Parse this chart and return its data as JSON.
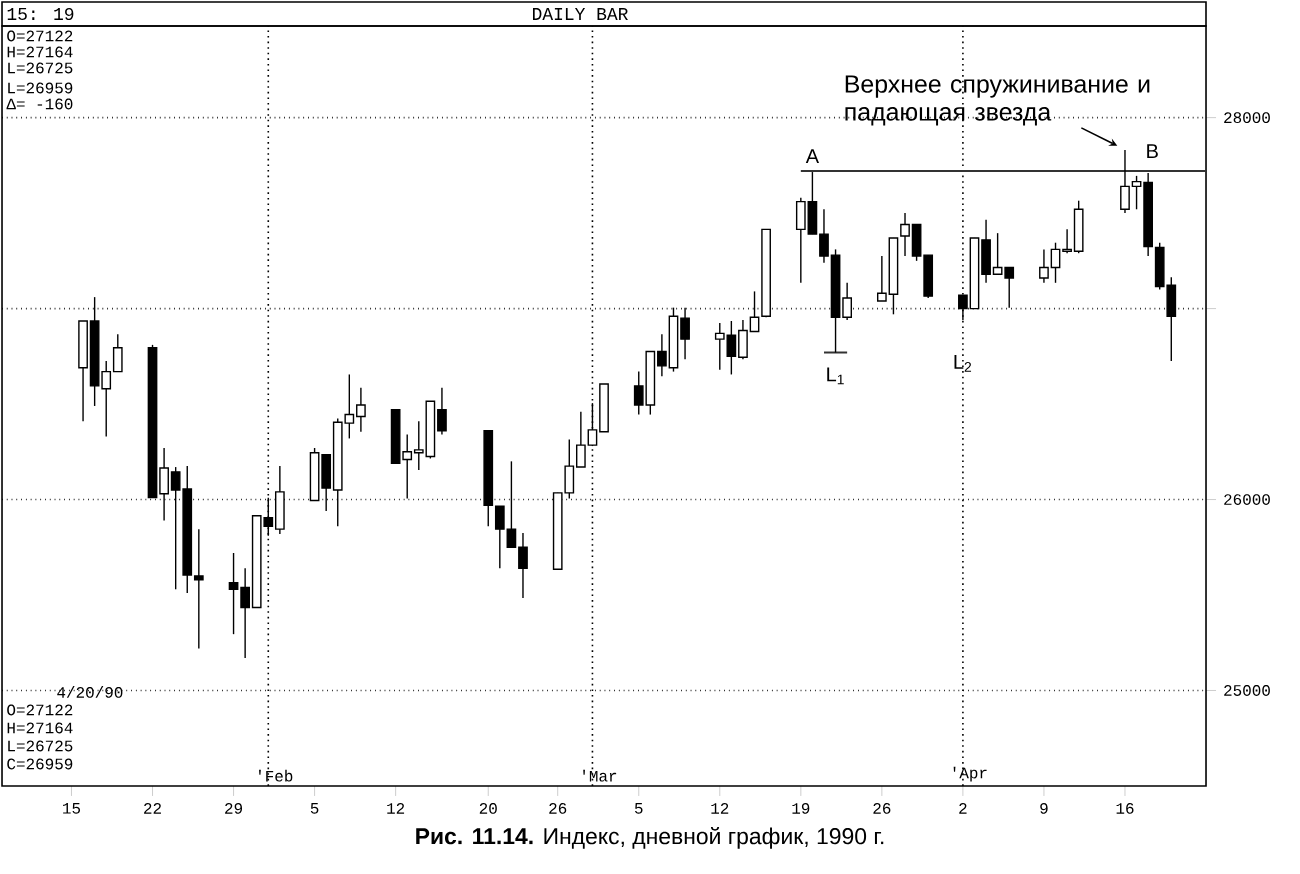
{
  "chart_data": {
    "type": "candlestick",
    "title": "**Рис. 11.14.** Индекс, дневной график, 1990 г.",
    "x": [
      "1990-01-16",
      "1990-01-17",
      "1990-01-18",
      "1990-01-19",
      "1990-01-22",
      "1990-01-23",
      "1990-01-24",
      "1990-01-25",
      "1990-01-26",
      "1990-01-29",
      "1990-01-30",
      "1990-01-31",
      "1990-02-01",
      "1990-02-02",
      "1990-02-05",
      "1990-02-06",
      "1990-02-07",
      "1990-02-08",
      "1990-02-09",
      "1990-02-12",
      "1990-02-13",
      "1990-02-14",
      "1990-02-15",
      "1990-02-16",
      "1990-02-20",
      "1990-02-21",
      "1990-02-22",
      "1990-02-23",
      "1990-02-26",
      "1990-02-27",
      "1990-02-28",
      "1990-03-01",
      "1990-03-02",
      "1990-03-05",
      "1990-03-06",
      "1990-03-07",
      "1990-03-08",
      "1990-03-09",
      "1990-03-12",
      "1990-03-13",
      "1990-03-14",
      "1990-03-15",
      "1990-03-16",
      "1990-03-19",
      "1990-03-20",
      "1990-03-21",
      "1990-03-22",
      "1990-03-23",
      "1990-03-26",
      "1990-03-27",
      "1990-03-28",
      "1990-03-29",
      "1990-03-30",
      "1990-04-02",
      "1990-04-03",
      "1990-04-04",
      "1990-04-05",
      "1990-04-06",
      "1990-04-09",
      "1990-04-10",
      "1990-04-11",
      "1990-04-12",
      "1990-04-16",
      "1990-04-17",
      "1990-04-18",
      "1990-04-19",
      "1990-04-20"
    ],
    "ohlc": [
      [
        26690,
        26935,
        26410,
        26935
      ],
      [
        26935,
        27060,
        26490,
        26595
      ],
      [
        26580,
        26725,
        26330,
        26670
      ],
      [
        26670,
        26865,
        26670,
        26795
      ],
      [
        26795,
        26810,
        26010,
        26010
      ],
      [
        26030,
        26270,
        25890,
        26165
      ],
      [
        26145,
        26170,
        25530,
        26050
      ],
      [
        26055,
        26175,
        25510,
        25605
      ],
      [
        25600,
        25845,
        25220,
        25580
      ],
      [
        25565,
        25720,
        25295,
        25530
      ],
      [
        25540,
        25640,
        25170,
        25435
      ],
      [
        25435,
        25915,
        25435,
        25915
      ],
      [
        25905,
        26010,
        25810,
        25860
      ],
      [
        25845,
        26175,
        25820,
        26040
      ],
      [
        25995,
        26270,
        25995,
        26245
      ],
      [
        26235,
        26235,
        25940,
        26060
      ],
      [
        26050,
        26425,
        25860,
        26405
      ],
      [
        26400,
        26655,
        26320,
        26445
      ],
      [
        26435,
        26585,
        26355,
        26495
      ],
      [
        26470,
        26470,
        26190,
        26190
      ],
      [
        26210,
        26340,
        26005,
        26250
      ],
      [
        26245,
        26410,
        26155,
        26260
      ],
      [
        26225,
        26515,
        26215,
        26515
      ],
      [
        26470,
        26585,
        26340,
        26360
      ],
      [
        26360,
        26360,
        25860,
        25970
      ],
      [
        25965,
        25965,
        25640,
        25845
      ],
      [
        25845,
        26200,
        25750,
        25750
      ],
      [
        25750,
        25825,
        25485,
        25640
      ],
      [
        25635,
        26035,
        25635,
        26035
      ],
      [
        26035,
        26315,
        26005,
        26175
      ],
      [
        26170,
        26460,
        26170,
        26285
      ],
      [
        26285,
        26505,
        26280,
        26365
      ],
      [
        26355,
        26605,
        26355,
        26605
      ],
      [
        26595,
        26670,
        26445,
        26495
      ],
      [
        26495,
        26775,
        26445,
        26775
      ],
      [
        26775,
        26865,
        26645,
        26700
      ],
      [
        26690,
        27005,
        26670,
        26960
      ],
      [
        26950,
        27005,
        26735,
        26840
      ],
      [
        26840,
        26925,
        26680,
        26870
      ],
      [
        26860,
        26935,
        26655,
        26750
      ],
      [
        26745,
        26940,
        26735,
        26885
      ],
      [
        26880,
        27090,
        26880,
        26955
      ],
      [
        26960,
        27415,
        26955,
        27415
      ],
      [
        27415,
        27580,
        27135,
        27560
      ],
      [
        27560,
        27715,
        27390,
        27390
      ],
      [
        27390,
        27520,
        27240,
        27275
      ],
      [
        27280,
        27310,
        26770,
        26955
      ],
      [
        26955,
        27135,
        26940,
        27055
      ],
      [
        27040,
        27275,
        27040,
        27080
      ],
      [
        27075,
        27370,
        26970,
        27370
      ],
      [
        27380,
        27500,
        27275,
        27440
      ],
      [
        27440,
        27440,
        27250,
        27275
      ],
      [
        27280,
        27280,
        27055,
        27065
      ],
      [
        27070,
        27070,
        26940,
        27000
      ],
      [
        27000,
        27370,
        27000,
        27370
      ],
      [
        27360,
        27465,
        27135,
        27180
      ],
      [
        27180,
        27395,
        27180,
        27215
      ],
      [
        27215,
        27215,
        27005,
        27160
      ],
      [
        27160,
        27310,
        27135,
        27215
      ],
      [
        27215,
        27345,
        27135,
        27310
      ],
      [
        27300,
        27415,
        27290,
        27310
      ],
      [
        27300,
        27565,
        27290,
        27520
      ],
      [
        27520,
        27830,
        27500,
        27640
      ],
      [
        27640,
        27695,
        27520,
        27665
      ],
      [
        27660,
        27710,
        27275,
        27325
      ],
      [
        27320,
        27345,
        27100,
        27115
      ],
      [
        27122,
        27164,
        26725,
        26959
      ]
    ],
    "series": [
      {
        "type": "line",
        "color": "#333333",
        "x": [
          "1990-03-19",
          "1990-04-23"
        ],
        "values": [
          27720,
          27720
        ]
      },
      {
        "type": "line",
        "color": "#333333",
        "x": [
          "1990-03-21",
          "1990-03-23"
        ],
        "values": [
          26770,
          26770
        ]
      }
    ],
    "xlim": [
      "1990-01-09",
      "1990-04-23"
    ],
    "xticks": [
      {
        "value": "1990-01-15",
        "label": "15"
      },
      {
        "value": "1990-01-22",
        "label": "22"
      },
      {
        "value": "1990-01-29",
        "label": "29"
      },
      {
        "value": "1990-02-05",
        "label": "5"
      },
      {
        "value": "1990-02-12",
        "label": "12"
      },
      {
        "value": "1990-02-20",
        "label": "20"
      },
      {
        "value": "1990-02-26",
        "label": "26"
      },
      {
        "value": "1990-03-05",
        "label": "5"
      },
      {
        "value": "1990-03-12",
        "label": "12"
      },
      {
        "value": "1990-03-19",
        "label": "19"
      },
      {
        "value": "1990-03-26",
        "label": "26"
      },
      {
        "value": "1990-04-02",
        "label": "2"
      },
      {
        "value": "1990-04-09",
        "label": "9"
      },
      {
        "value": "1990-04-16",
        "label": "16"
      }
    ],
    "ylim": [
      24500,
      28480
    ],
    "yticks": [
      25000,
      26000,
      {
        "value": 27000,
        "label": null
      },
      28000
    ],
    "grid": "y",
    "ref_lines": [
      {
        "axis": "x",
        "value": "1990-02-01",
        "label": "'Feb",
        "line_style": "dotted"
      },
      {
        "axis": "x",
        "value": "1990-03-01",
        "label": "'Mar",
        "line_style": "dotted"
      },
      {
        "axis": "x",
        "value": "1990-04-02",
        "label": "'Apr",
        "line_style": "dotted"
      }
    ],
    "annotations": [
      "15: 19",
      "DAILY BAR",
      "O=27122",
      "H=27164",
      "L=26725",
      "L=26959",
      "Δ= -160",
      "4/20/90",
      "O=27122",
      "H=27164",
      "L=26725",
      "C=26959",
      {
        "text": "A",
        "x": "1990-03-20",
        "y": 27715
      },
      {
        "text": "B",
        "x": "1990-04-17",
        "y": 27720
      },
      {
        "text": "L$_{1}$",
        "x": "1990-03-22",
        "y": 26770
      },
      "L$_{2}$",
      "Верхнее спружинивание и падающая звезда"
    ]
  }
}
